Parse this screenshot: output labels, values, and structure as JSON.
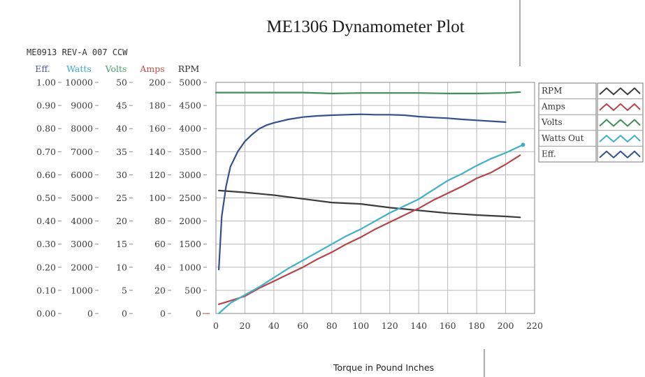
{
  "chart_data": {
    "type": "line",
    "title": "ME1306 Dynamometer Plot",
    "subtitle": "ME0913 REV-A 007 CCW",
    "xlabel": "Torque in Pound Inches",
    "xlim": [
      0,
      220
    ],
    "x_ticks": [
      "0",
      "20",
      "40",
      "60",
      "80",
      "100",
      "120",
      "140",
      "160",
      "180",
      "200",
      "220"
    ],
    "grid": true,
    "legend_position": "right",
    "axes": [
      {
        "key": "eff",
        "label": "Eff.",
        "color": "#4a5a9a",
        "ylim": [
          0,
          1
        ],
        "ticks": [
          "0.00",
          "0.10",
          "0.20",
          "0.30",
          "0.40",
          "0.50",
          "0.60",
          "0.70",
          "0.80",
          "0.90",
          "1.00"
        ]
      },
      {
        "key": "watts",
        "label": "Watts",
        "color": "#3aa6d8",
        "ylim": [
          0,
          10000
        ],
        "ticks": [
          "0",
          "1000",
          "2000",
          "3000",
          "4000",
          "5000",
          "6000",
          "7000",
          "8000",
          "9000",
          "10000"
        ]
      },
      {
        "key": "volts",
        "label": "Volts",
        "color": "#4aa066",
        "ylim": [
          0,
          50
        ],
        "ticks": [
          "0",
          "5",
          "10",
          "15",
          "20",
          "25",
          "30",
          "35",
          "40",
          "45",
          "50"
        ]
      },
      {
        "key": "amps",
        "label": "Amps",
        "color": "#c0504a",
        "ylim": [
          0,
          200
        ],
        "ticks": [
          "0",
          "20",
          "40",
          "60",
          "80",
          "100",
          "120",
          "140",
          "160",
          "180",
          "200"
        ]
      },
      {
        "key": "rpm",
        "label": "RPM",
        "color": "#333333",
        "ylim": [
          0,
          5000
        ],
        "ticks": [
          "0",
          "500",
          "1000",
          "1500",
          "2000",
          "2500",
          "3000",
          "3500",
          "4000",
          "4500",
          "5000"
        ]
      }
    ],
    "series": [
      {
        "name": "RPM",
        "axis": "rpm",
        "color": "#3c3c3c",
        "x": [
          2,
          20,
          40,
          60,
          80,
          100,
          120,
          140,
          160,
          180,
          200,
          210
        ],
        "y": [
          2660,
          2620,
          2560,
          2480,
          2400,
          2370,
          2290,
          2230,
          2170,
          2130,
          2100,
          2080
        ]
      },
      {
        "name": "Amps",
        "axis": "amps",
        "color": "#b5454a",
        "x": [
          2,
          10,
          20,
          30,
          40,
          50,
          60,
          70,
          80,
          90,
          100,
          110,
          120,
          130,
          140,
          150,
          160,
          170,
          180,
          190,
          200,
          210
        ],
        "y": [
          8,
          11,
          15,
          22,
          28,
          34,
          40,
          47,
          53,
          60,
          66,
          73,
          79,
          85,
          91,
          98,
          104,
          110,
          117,
          122,
          129,
          137
        ]
      },
      {
        "name": "Volts",
        "axis": "volts",
        "color": "#3f8f5a",
        "x": [
          0,
          20,
          40,
          60,
          80,
          100,
          120,
          140,
          160,
          180,
          200,
          210
        ],
        "y": [
          47.8,
          47.8,
          47.8,
          47.8,
          47.6,
          47.7,
          47.7,
          47.7,
          47.6,
          47.6,
          47.7,
          47.9
        ]
      },
      {
        "name": "Watts Out",
        "axis": "watts",
        "color": "#3fb0c8",
        "x": [
          2,
          10,
          20,
          30,
          40,
          50,
          60,
          70,
          80,
          90,
          100,
          110,
          120,
          130,
          140,
          150,
          160,
          170,
          180,
          190,
          200,
          212
        ],
        "y": [
          0,
          450,
          800,
          1150,
          1550,
          1950,
          2300,
          2650,
          3000,
          3350,
          3650,
          4000,
          4350,
          4650,
          4950,
          5350,
          5750,
          6050,
          6400,
          6700,
          6950,
          7300
        ]
      },
      {
        "name": "Eff.",
        "axis": "eff",
        "color": "#34508e",
        "x": [
          2,
          4,
          7,
          10,
          15,
          20,
          25,
          30,
          35,
          40,
          50,
          60,
          70,
          80,
          90,
          100,
          110,
          120,
          130,
          140,
          150,
          160,
          170,
          180,
          190,
          200
        ],
        "y": [
          0.19,
          0.42,
          0.55,
          0.635,
          0.7,
          0.745,
          0.775,
          0.8,
          0.815,
          0.825,
          0.84,
          0.85,
          0.855,
          0.858,
          0.86,
          0.862,
          0.86,
          0.86,
          0.858,
          0.852,
          0.848,
          0.845,
          0.84,
          0.836,
          0.832,
          0.828
        ]
      }
    ]
  }
}
